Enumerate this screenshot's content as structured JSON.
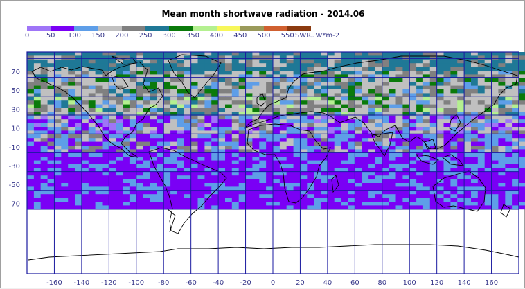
{
  "title": "Mean month shortwave radiation - 2014.06",
  "units_label": "SWR, W*m-2",
  "legend": {
    "ticks": [
      "0",
      "50",
      "100",
      "150",
      "200",
      "250",
      "300",
      "350",
      "400",
      "450",
      "500",
      "550",
      "..."
    ],
    "colors": [
      "#9f75f7",
      "#7a00f5",
      "#5e9ee8",
      "#c0c0c0",
      "#808080",
      "#1f7896",
      "#0a7a0a",
      "#b4f090",
      "#f7f75a",
      "#9a9a5a",
      "#d06030",
      "#8b3a10"
    ]
  },
  "axes": {
    "x_ticks": [
      "-160",
      "-140",
      "-120",
      "-100",
      "-80",
      "-60",
      "-40",
      "-20",
      "0",
      "20",
      "40",
      "60",
      "80",
      "100",
      "120",
      "140",
      "160"
    ],
    "y_ticks": [
      "70",
      "50",
      "30",
      "10",
      "-10",
      "-30",
      "-50",
      "-70"
    ]
  }
}
